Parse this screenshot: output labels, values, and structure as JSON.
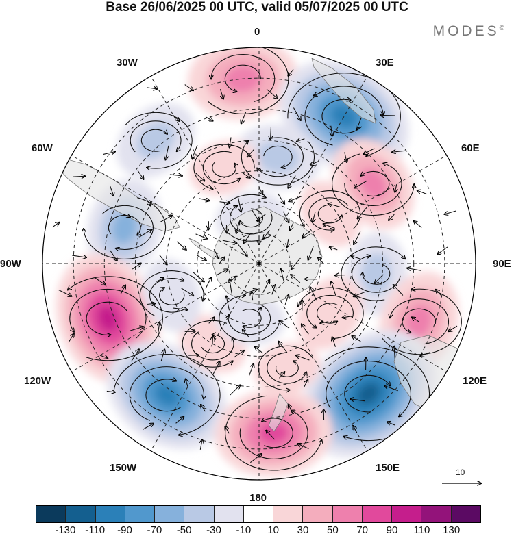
{
  "title": "Base 26/06/2025 00 UTC, valid 05/07/2025 00 UTC",
  "brand": "MODES",
  "brand_mark": "©",
  "lon_labels": {
    "top": "0",
    "top_right": "30E",
    "right_upper": "60E",
    "right": "90E",
    "right_lower": "120E",
    "bottom_right": "150E",
    "bottom": "180",
    "bottom_left": "150W",
    "left_lower": "120W",
    "left": "90W",
    "left_upper": "60W",
    "top_left": "30W"
  },
  "reference_vector": "10",
  "colorbar": {
    "ticks": [
      "-130",
      "-110",
      "-90",
      "-70",
      "-50",
      "-30",
      "-10",
      "10",
      "30",
      "50",
      "70",
      "90",
      "110",
      "130"
    ],
    "colors": [
      "#0b3a5c",
      "#145f8f",
      "#2b80b8",
      "#5198cd",
      "#86b1dc",
      "#b9c9e5",
      "#e2e2ef",
      "#ffffff",
      "#f9d6d8",
      "#f4adbd",
      "#ee80ad",
      "#e1499c",
      "#c51e8c",
      "#93137a",
      "#5b0a63"
    ]
  },
  "map": {
    "projection": "south polar stereographic",
    "anomalies": [
      {
        "lon": -5,
        "lat": -30,
        "value": 75
      },
      {
        "lon": 30,
        "lat": -35,
        "value": -110
      },
      {
        "lon": -40,
        "lat": -38,
        "value": -45
      },
      {
        "lon": 55,
        "lat": -45,
        "value": 60
      },
      {
        "lon": -75,
        "lat": -45,
        "value": -60
      },
      {
        "lon": 10,
        "lat": -55,
        "value": -45
      },
      {
        "lon": -20,
        "lat": -57,
        "value": 25
      },
      {
        "lon": 55,
        "lat": -62,
        "value": 25
      },
      {
        "lon": 95,
        "lat": -52,
        "value": -40
      },
      {
        "lon": -110,
        "lat": -38,
        "value": 105
      },
      {
        "lon": 110,
        "lat": -35,
        "value": 65
      },
      {
        "lon": -145,
        "lat": -38,
        "value": -100
      },
      {
        "lon": 140,
        "lat": -35,
        "value": -125
      },
      {
        "lon": 175,
        "lat": -35,
        "value": 85
      },
      {
        "lon": -150,
        "lat": -60,
        "value": 25
      },
      {
        "lon": 165,
        "lat": -55,
        "value": 20
      },
      {
        "lon": -170,
        "lat": -72,
        "value": -25
      },
      {
        "lon": -10,
        "lat": -75,
        "value": -25
      },
      {
        "lon": 125,
        "lat": -62,
        "value": 35
      },
      {
        "lon": -110,
        "lat": -60,
        "value": -30
      }
    ]
  }
}
